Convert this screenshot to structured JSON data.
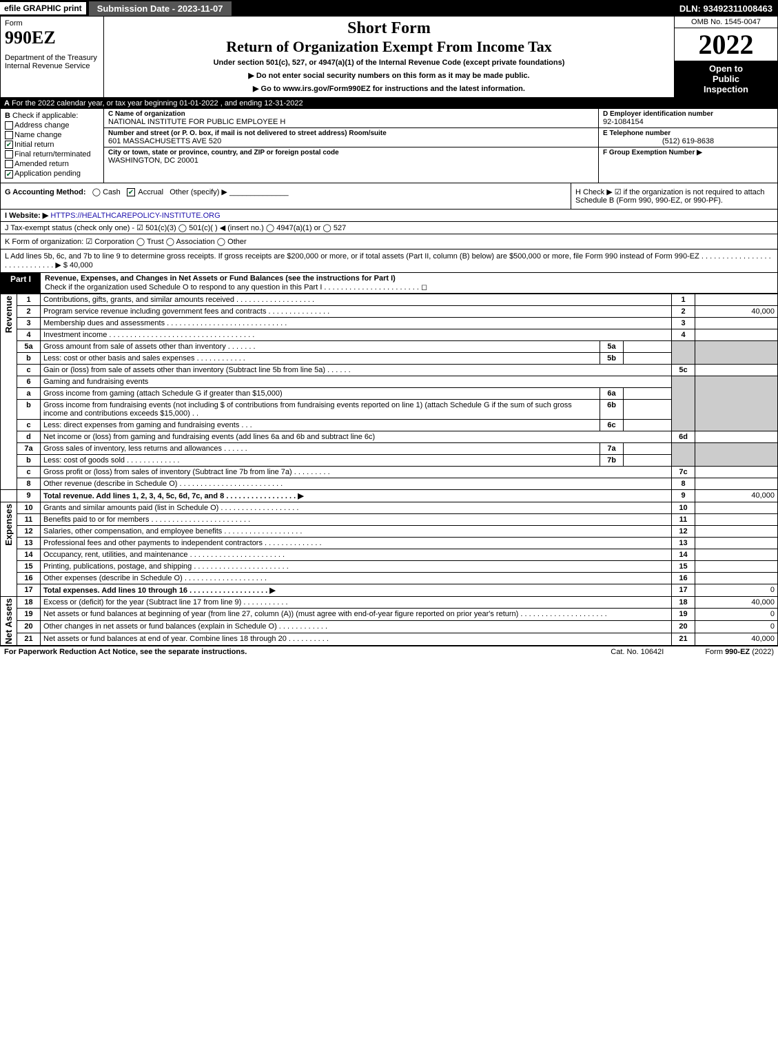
{
  "topbar": {
    "efile": "efile GRAPHIC print",
    "sub": "Submission Date - 2023-11-07",
    "dln": "DLN: 93492311008463"
  },
  "hdr": {
    "form": "Form",
    "num": "990EZ",
    "dept": "Department of the Treasury\nInternal Revenue Service",
    "sf": "Short Form",
    "rt": "Return of Organization Exempt From Income Tax",
    "us": "Under section 501(c), 527, or 4947(a)(1) of the Internal Revenue Code (except private foundations)",
    "dn": "▶ Do not enter social security numbers on this form as it may be made public.",
    "go": "▶ Go to www.irs.gov/Form990EZ for instructions and the latest information.",
    "omb": "OMB No. 1545-0047",
    "yr": "2022",
    "insp1": "Open to",
    "insp2": "Public",
    "insp3": "Inspection"
  },
  "rowA": {
    "a": "A",
    "txt": "For the 2022 calendar year, or tax year beginning 01-01-2022 , and ending 12-31-2022"
  },
  "B": {
    "lab": "B",
    "sub": "Check if applicable:",
    "o1": "Address change",
    "o2": "Name change",
    "o3": "Initial return",
    "o4": "Final return/terminated",
    "o5": "Amended return",
    "o6": "Application pending"
  },
  "C": {
    "lab": "C Name of organization",
    "val": "NATIONAL INSTITUTE FOR PUBLIC EMPLOYEE H",
    "addr_lab": "Number and street (or P. O. box, if mail is not delivered to street address)       Room/suite",
    "addr": "601 MASSACHUSETTS AVE 520",
    "city_lab": "City or town, state or province, country, and ZIP or foreign postal code",
    "city": "WASHINGTON, DC  20001"
  },
  "D": {
    "lab": "D Employer identification number",
    "val": "92-1084154"
  },
  "E": {
    "lab": "E Telephone number",
    "val": "(512) 619-8638"
  },
  "F": {
    "lab": "F Group Exemption Number   ▶",
    "val": ""
  },
  "G": {
    "lab": "G Accounting Method:",
    "o1": "Cash",
    "o2": "Accrual",
    "o3": "Other (specify) ▶"
  },
  "H": {
    "txt": "H  Check ▶  ☑  if the organization is not required to attach Schedule B (Form 990, 990-EZ, or 990-PF)."
  },
  "I": {
    "lab": "I Website: ▶",
    "val": "HTTPS://HEALTHCAREPOLICY-INSTITUTE.ORG"
  },
  "J": {
    "txt": "J Tax-exempt status (check only one) -  ☑ 501(c)(3)  ◯ 501(c)(  ) ◀ (insert no.)  ◯ 4947(a)(1) or  ◯ 527"
  },
  "K": {
    "txt": "K Form of organization:   ☑ Corporation   ◯ Trust   ◯ Association   ◯ Other"
  },
  "L": {
    "txt": "L Add lines 5b, 6c, and 7b to line 9 to determine gross receipts. If gross receipts are $200,000 or more, or if total assets (Part II, column (B) below) are $500,000 or more, file Form 990 instead of Form 990-EZ . . . . . . . . . . . . . . . . . . . . . . . . . . . . .  ▶ $ 40,000"
  },
  "part1": {
    "tab": "Part I",
    "title": "Revenue, Expenses, and Changes in Net Assets or Fund Balances (see the instructions for Part I)",
    "sub": "Check if the organization used Schedule O to respond to any question in this Part I . . . . . . . . . . . . . . . . . . . . . . .  ◻"
  },
  "sides": {
    "rev": "Revenue",
    "exp": "Expenses",
    "na": "Net Assets"
  },
  "rows": {
    "1": {
      "n": "1",
      "d": "Contributions, gifts, grants, and similar amounts received . . . . . . . . . . . . . . . . . . .",
      "r": "1",
      "v": ""
    },
    "2": {
      "n": "2",
      "d": "Program service revenue including government fees and contracts . . . . . . . . . . . . . . .",
      "r": "2",
      "v": "40,000"
    },
    "3": {
      "n": "3",
      "d": "Membership dues and assessments . . . . . . . . . . . . . . . . . . . . . . . . . . . . .",
      "r": "3",
      "v": ""
    },
    "4": {
      "n": "4",
      "d": "Investment income . . . . . . . . . . . . . . . . . . . . . . . . . . . . . . . . . . .",
      "r": "4",
      "v": ""
    },
    "5a": {
      "n": "5a",
      "d": "Gross amount from sale of assets other than inventory . . . . . . .",
      "sl": "5a"
    },
    "5b": {
      "n": "b",
      "d": "Less: cost or other basis and sales expenses . . . . . . . . . . . .",
      "sl": "5b"
    },
    "5c": {
      "n": "c",
      "d": "Gain or (loss) from sale of assets other than inventory (Subtract line 5b from line 5a) . . . . . .",
      "r": "5c",
      "v": ""
    },
    "6": {
      "n": "6",
      "d": "Gaming and fundraising events"
    },
    "6a": {
      "n": "a",
      "d": "Gross income from gaming (attach Schedule G if greater than $15,000)",
      "sl": "6a"
    },
    "6b": {
      "n": "b",
      "d": "Gross income from fundraising events (not including $                    of contributions from fundraising events reported on line 1) (attach Schedule G if the sum of such gross income and contributions exceeds $15,000)    .   .",
      "sl": "6b"
    },
    "6c": {
      "n": "c",
      "d": "Less: direct expenses from gaming and fundraising events    .   .   .",
      "sl": "6c"
    },
    "6d": {
      "n": "d",
      "d": "Net income or (loss) from gaming and fundraising events (add lines 6a and 6b and subtract line 6c)",
      "r": "6d",
      "v": ""
    },
    "7a": {
      "n": "7a",
      "d": "Gross sales of inventory, less returns and allowances . . . . . .",
      "sl": "7a"
    },
    "7b": {
      "n": "b",
      "d": "Less: cost of goods sold         .   .   .   .   .   .   .   .   .   .   .   .   .",
      "sl": "7b"
    },
    "7c": {
      "n": "c",
      "d": "Gross profit or (loss) from sales of inventory (Subtract line 7b from line 7a) . . . . . . . . .",
      "r": "7c",
      "v": ""
    },
    "8": {
      "n": "8",
      "d": "Other revenue (describe in Schedule O) . . . . . . . . . . . . . . . . . . . . . . . . .",
      "r": "8",
      "v": ""
    },
    "9": {
      "n": "9",
      "d": "Total revenue. Add lines 1, 2, 3, 4, 5c, 6d, 7c, and 8   .  .  .  .  .  .  .  .  .  .  .  .  .  .  .  .  .   ▶",
      "r": "9",
      "v": "40,000"
    },
    "10": {
      "n": "10",
      "d": "Grants and similar amounts paid (list in Schedule O) . . . . . . . . . . . . . . . . . . .",
      "r": "10",
      "v": ""
    },
    "11": {
      "n": "11",
      "d": "Benefits paid to or for members     .  .  .  .  .  .  .  .  .  .  .  .  .  .  .  .  .  .  .  .  .  .  .  .",
      "r": "11",
      "v": ""
    },
    "12": {
      "n": "12",
      "d": "Salaries, other compensation, and employee benefits . . . . . . . . . . . . . . . . . . .",
      "r": "12",
      "v": ""
    },
    "13": {
      "n": "13",
      "d": "Professional fees and other payments to independent contractors . . . . . . . . . . . . . .",
      "r": "13",
      "v": ""
    },
    "14": {
      "n": "14",
      "d": "Occupancy, rent, utilities, and maintenance . . . . . . . . . . . . . . . . . . . . . . .",
      "r": "14",
      "v": ""
    },
    "15": {
      "n": "15",
      "d": "Printing, publications, postage, and shipping . . . . . . . . . . . . . . . . . . . . . . .",
      "r": "15",
      "v": ""
    },
    "16": {
      "n": "16",
      "d": "Other expenses (describe in Schedule O)     .  .  .  .  .  .  .  .  .  .  .  .  .  .  .  .  .  .  .  .",
      "r": "16",
      "v": ""
    },
    "17": {
      "n": "17",
      "d": "Total expenses. Add lines 10 through 16      .  .  .  .  .  .  .  .  .  .  .  .  .  .  .  .  .  .  .   ▶",
      "r": "17",
      "v": "0"
    },
    "18": {
      "n": "18",
      "d": "Excess or (deficit) for the year (Subtract line 17 from line 9)       .   .   .   .   .   .   .   .   .   .   .",
      "r": "18",
      "v": "40,000"
    },
    "19": {
      "n": "19",
      "d": "Net assets or fund balances at beginning of year (from line 27, column (A)) (must agree with end-of-year figure reported on prior year's return) . . . . . . . . . . . . . . . . . . . . .",
      "r": "19",
      "v": "0"
    },
    "20": {
      "n": "20",
      "d": "Other changes in net assets or fund balances (explain in Schedule O) . . . . . . . . . . . .",
      "r": "20",
      "v": "0"
    },
    "21": {
      "n": "21",
      "d": "Net assets or fund balances at end of year. Combine lines 18 through 20 . . . . . . . . . .",
      "r": "21",
      "v": "40,000"
    }
  },
  "foot": {
    "l": "For Paperwork Reduction Act Notice, see the separate instructions.",
    "c": "Cat. No. 10642I",
    "r": "Form 990-EZ (2022)"
  }
}
